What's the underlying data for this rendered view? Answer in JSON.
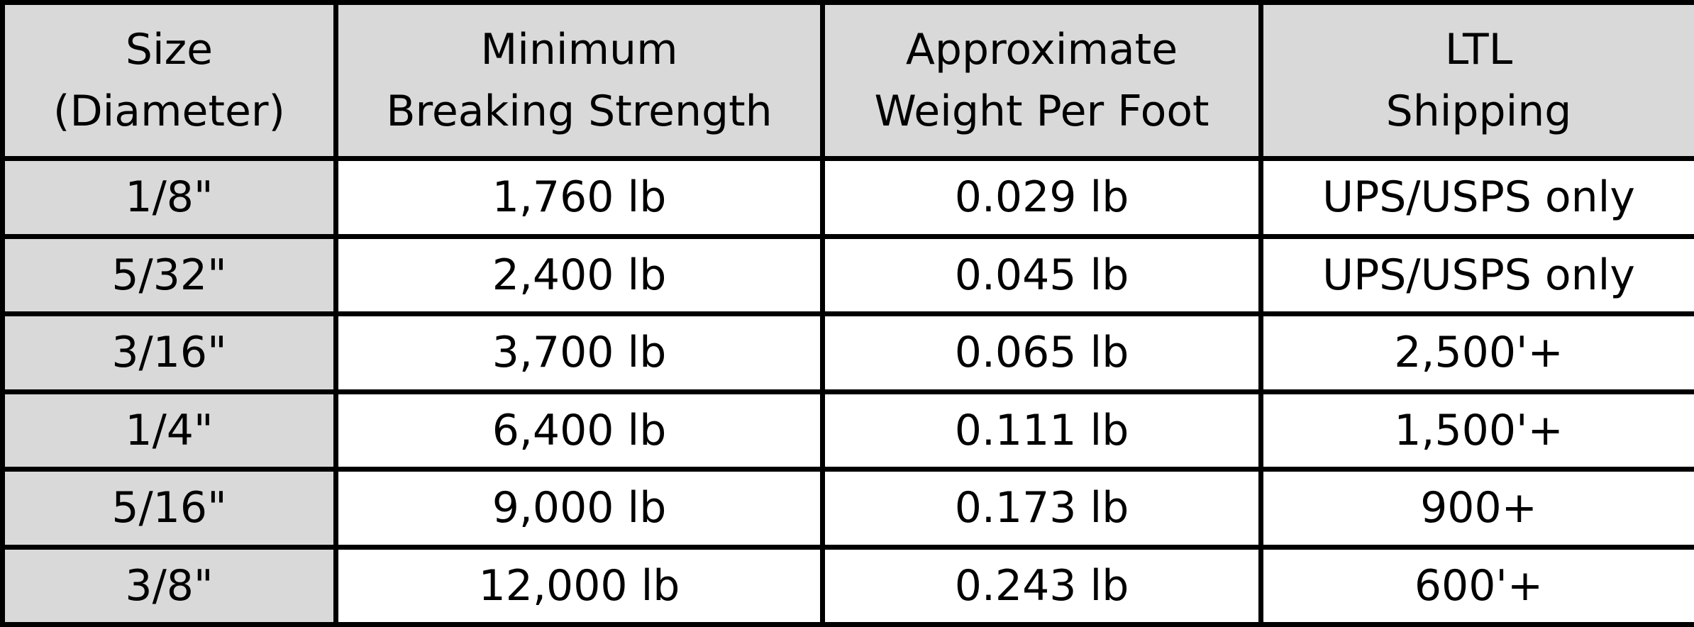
{
  "table": {
    "header": [
      [
        "Size",
        "(Diameter)"
      ],
      [
        "Minimum",
        "Breaking Strength"
      ],
      [
        "Approximate",
        "Weight Per Foot"
      ],
      [
        "LTL",
        "Shipping"
      ]
    ],
    "rows": [
      [
        "1/8\"",
        "1,760 lb",
        "0.029 lb",
        "UPS/USPS only"
      ],
      [
        "5/32\"",
        "2,400 lb",
        "0.045 lb",
        "UPS/USPS only"
      ],
      [
        "3/16\"",
        "3,700 lb",
        "0.065 lb",
        "2,500'+"
      ],
      [
        "1/4\"",
        "6,400 lb",
        "0.111 lb",
        "1,500'+"
      ],
      [
        "5/16\"",
        "9,000 lb",
        "0.173 lb",
        "900+"
      ],
      [
        "3/8\"",
        "12,000 lb",
        "0.243 lb",
        "600'+"
      ]
    ]
  }
}
